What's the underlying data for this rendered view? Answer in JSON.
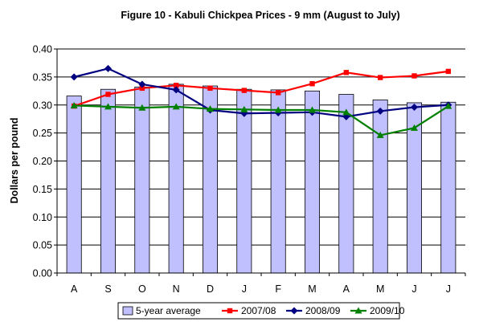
{
  "chart_data": {
    "type": "bar+line",
    "title": "Figure 10 - Kabuli Chickpea Prices - 9 mm  (August to July)",
    "ylabel": "Dollars per pound",
    "xlabel": "",
    "ylim": [
      0,
      0.4
    ],
    "yticks": [
      "0.00",
      "0.05",
      "0.10",
      "0.15",
      "0.20",
      "0.25",
      "0.30",
      "0.35",
      "0.40"
    ],
    "categories": [
      "A",
      "S",
      "O",
      "N",
      "D",
      "J",
      "F",
      "M",
      "A",
      "M",
      "J",
      "J"
    ],
    "grid": true,
    "legend_position": "bottom",
    "bar_series": {
      "name": "5-year average",
      "color": "#c0c0ff",
      "values": [
        0.316,
        0.328,
        0.332,
        0.337,
        0.334,
        0.328,
        0.327,
        0.325,
        0.319,
        0.309,
        0.304,
        0.305
      ]
    },
    "series": [
      {
        "name": "2007/08",
        "color": "#ff0000",
        "marker": "square",
        "values": [
          0.298,
          0.319,
          0.33,
          0.335,
          0.33,
          0.326,
          0.322,
          0.338,
          0.358,
          0.349,
          0.352,
          0.36
        ]
      },
      {
        "name": "2008/09",
        "color": "#000080",
        "marker": "diamond",
        "values": [
          0.35,
          0.365,
          0.337,
          0.327,
          0.291,
          0.285,
          0.286,
          0.287,
          0.279,
          0.289,
          0.296,
          0.3
        ]
      },
      {
        "name": "2009/10",
        "color": "#008000",
        "marker": "triangle",
        "values": [
          0.299,
          0.297,
          0.295,
          0.297,
          0.293,
          0.292,
          0.291,
          0.291,
          0.287,
          0.246,
          0.259,
          0.298
        ]
      }
    ]
  }
}
